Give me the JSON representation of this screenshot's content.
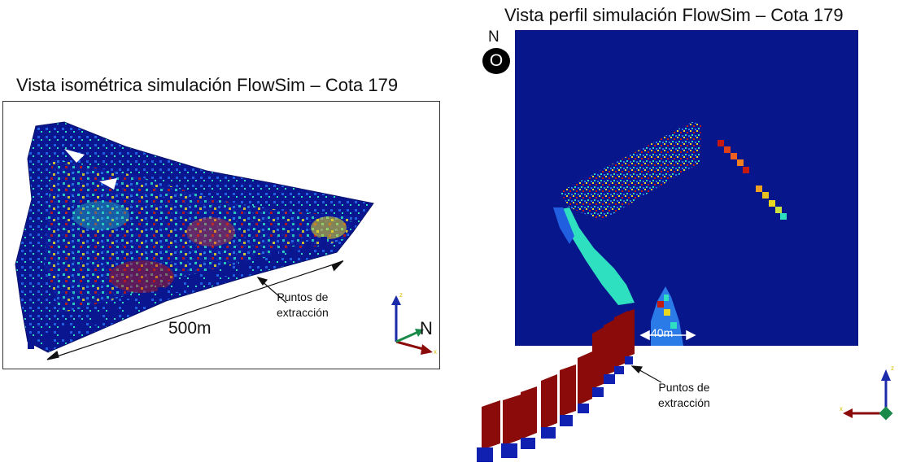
{
  "left_view": {
    "title": "Vista isométrica simulación FlowSim – Cota 179",
    "distance_label": "500m",
    "extraction_label_line1": "Puntos de",
    "extraction_label_line2": "extracción",
    "north_label": "N"
  },
  "right_view": {
    "title": "Vista perfil simulación FlowSim – Cota 179",
    "scale_label": "40m",
    "extraction_label_line1": "Puntos de",
    "extraction_label_line2": "extracción",
    "north_label": "N",
    "compass_label": "O"
  },
  "colors": {
    "background_blue": "#08168c",
    "cyan": "#2ee0c0",
    "yellow": "#e8d820",
    "orange": "#f08020",
    "red": "#c41a10",
    "dark_red": "#8b0a0a",
    "blue_block": "#1020b0"
  }
}
